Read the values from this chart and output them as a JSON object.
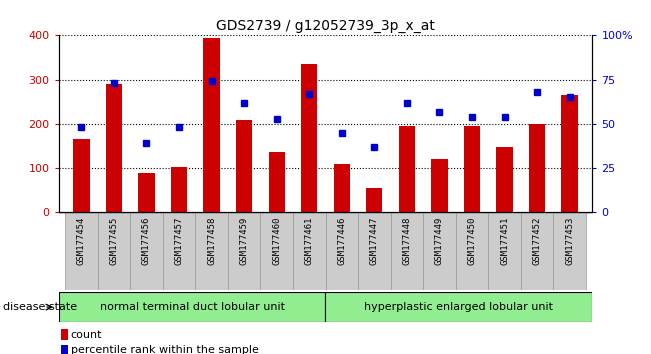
{
  "title": "GDS2739 / g12052739_3p_x_at",
  "categories": [
    "GSM177454",
    "GSM177455",
    "GSM177456",
    "GSM177457",
    "GSM177458",
    "GSM177459",
    "GSM177460",
    "GSM177461",
    "GSM177446",
    "GSM177447",
    "GSM177448",
    "GSM177449",
    "GSM177450",
    "GSM177451",
    "GSM177452",
    "GSM177453"
  ],
  "counts": [
    165,
    290,
    90,
    103,
    395,
    208,
    137,
    335,
    110,
    55,
    195,
    120,
    195,
    148,
    200,
    265
  ],
  "percentiles": [
    48,
    73,
    39,
    48,
    74,
    62,
    53,
    67,
    45,
    37,
    62,
    57,
    54,
    54,
    68,
    65
  ],
  "group1_label": "normal terminal duct lobular unit",
  "group2_label": "hyperplastic enlarged lobular unit",
  "group1_count": 8,
  "group2_count": 8,
  "bar_color": "#cc0000",
  "dot_color": "#0000cc",
  "ylim_left": [
    0,
    400
  ],
  "ylim_right": [
    0,
    100
  ],
  "yticks_left": [
    0,
    100,
    200,
    300,
    400
  ],
  "yticks_right": [
    0,
    25,
    50,
    75,
    100
  ],
  "ytick_labels_right": [
    "0",
    "25",
    "50",
    "75",
    "100%"
  ],
  "grid_color": "#000000",
  "bg_color": "#ffffff",
  "bar_width": 0.5,
  "group_bg_color": "#90ee90",
  "xtick_bg_color": "#cccccc",
  "xtick_edge_color": "#999999"
}
